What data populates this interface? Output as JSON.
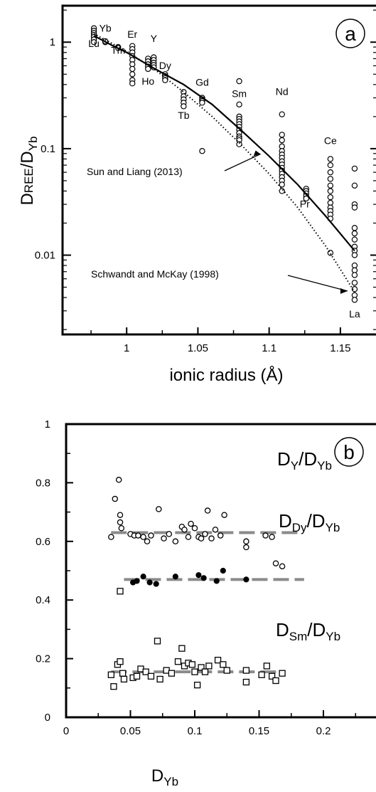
{
  "chart_data": [
    {
      "panel": "a",
      "type": "scatter",
      "xlabel": "ionic radius (Å)",
      "ylabel_main": "D",
      "ylabel_sub1": "REE",
      "ylabel_sep": "/D",
      "ylabel_sub2": "Yb",
      "yscale": "log",
      "xlim": [
        0.955,
        1.175
      ],
      "ylim": [
        0.0018,
        2.2
      ],
      "xticks": [
        1,
        1.05,
        1.1,
        1.15
      ],
      "xtick_labels": [
        "1",
        "1.05",
        "1.1",
        "1.15"
      ],
      "yticks": [
        1,
        0.1,
        0.01
      ],
      "ytick_labels": [
        "1",
        "0.1",
        "0.01"
      ],
      "element_labels": [
        {
          "text": "Lu",
          "x": 0.977,
          "y": 0.9
        },
        {
          "text": "Yb",
          "x": 0.985,
          "y": 1.25
        },
        {
          "text": "Tm",
          "x": 0.994,
          "y": 0.78
        },
        {
          "text": "Er",
          "x": 1.004,
          "y": 1.1
        },
        {
          "text": "Y",
          "x": 1.019,
          "y": 1.0
        },
        {
          "text": "Ho",
          "x": 1.015,
          "y": 0.4
        },
        {
          "text": "Dy",
          "x": 1.027,
          "y": 0.56
        },
        {
          "text": "Gd",
          "x": 1.053,
          "y": 0.39
        },
        {
          "text": "Tb",
          "x": 1.04,
          "y": 0.19
        },
        {
          "text": "Sm",
          "x": 1.079,
          "y": 0.305
        },
        {
          "text": "Nd",
          "x": 1.109,
          "y": 0.32
        },
        {
          "text": "Pr",
          "x": 1.125,
          "y": 0.028
        },
        {
          "text": "Ce",
          "x": 1.143,
          "y": 0.11
        },
        {
          "text": "La",
          "x": 1.16,
          "y": 0.0026
        }
      ],
      "series": [
        {
          "marker": "open-circle",
          "points": [
            [
              0.977,
              1.35
            ],
            [
              0.977,
              1.28
            ],
            [
              0.977,
              1.22
            ],
            [
              0.977,
              1.17
            ],
            [
              0.977,
              1.12
            ],
            [
              0.977,
              1.06
            ],
            [
              0.977,
              1.0
            ],
            [
              0.985,
              1.0
            ],
            [
              0.985,
              1.02
            ],
            [
              0.994,
              0.9
            ],
            [
              0.994,
              0.88
            ],
            [
              1.004,
              0.92
            ],
            [
              1.004,
              0.86
            ],
            [
              1.004,
              0.8
            ],
            [
              1.004,
              0.74
            ],
            [
              1.004,
              0.68
            ],
            [
              1.004,
              0.62
            ],
            [
              1.004,
              0.56
            ],
            [
              1.004,
              0.5
            ],
            [
              1.004,
              0.44
            ],
            [
              1.004,
              0.41
            ],
            [
              1.015,
              0.7
            ],
            [
              1.015,
              0.66
            ],
            [
              1.015,
              0.62
            ],
            [
              1.015,
              0.59
            ],
            [
              1.015,
              0.56
            ],
            [
              1.019,
              0.72
            ],
            [
              1.019,
              0.68
            ],
            [
              1.019,
              0.64
            ],
            [
              1.019,
              0.61
            ],
            [
              1.019,
              0.58
            ],
            [
              1.027,
              0.5
            ],
            [
              1.027,
              0.48
            ],
            [
              1.027,
              0.46
            ],
            [
              1.027,
              0.44
            ],
            [
              1.04,
              0.34
            ],
            [
              1.04,
              0.31
            ],
            [
              1.04,
              0.29
            ],
            [
              1.04,
              0.27
            ],
            [
              1.04,
              0.25
            ],
            [
              1.053,
              0.3
            ],
            [
              1.053,
              0.29
            ],
            [
              1.053,
              0.28
            ],
            [
              1.053,
              0.27
            ],
            [
              1.053,
              0.095
            ],
            [
              1.079,
              0.43
            ],
            [
              1.079,
              0.26
            ],
            [
              1.079,
              0.2
            ],
            [
              1.079,
              0.19
            ],
            [
              1.079,
              0.18
            ],
            [
              1.079,
              0.17
            ],
            [
              1.079,
              0.16
            ],
            [
              1.079,
              0.15
            ],
            [
              1.079,
              0.14
            ],
            [
              1.079,
              0.13
            ],
            [
              1.079,
              0.125
            ],
            [
              1.079,
              0.12
            ],
            [
              1.079,
              0.11
            ],
            [
              1.109,
              0.21
            ],
            [
              1.109,
              0.135
            ],
            [
              1.109,
              0.12
            ],
            [
              1.109,
              0.105
            ],
            [
              1.109,
              0.095
            ],
            [
              1.109,
              0.088
            ],
            [
              1.109,
              0.082
            ],
            [
              1.109,
              0.076
            ],
            [
              1.109,
              0.071
            ],
            [
              1.109,
              0.066
            ],
            [
              1.109,
              0.062
            ],
            [
              1.109,
              0.058
            ],
            [
              1.109,
              0.054
            ],
            [
              1.109,
              0.05
            ],
            [
              1.109,
              0.046
            ],
            [
              1.109,
              0.04
            ],
            [
              1.126,
              0.042
            ],
            [
              1.126,
              0.04
            ],
            [
              1.126,
              0.038
            ],
            [
              1.126,
              0.036
            ],
            [
              1.126,
              0.034
            ],
            [
              1.143,
              0.08
            ],
            [
              1.143,
              0.07
            ],
            [
              1.143,
              0.06
            ],
            [
              1.143,
              0.052
            ],
            [
              1.143,
              0.045
            ],
            [
              1.143,
              0.04
            ],
            [
              1.143,
              0.035
            ],
            [
              1.143,
              0.031
            ],
            [
              1.143,
              0.028
            ],
            [
              1.143,
              0.026
            ],
            [
              1.143,
              0.024
            ],
            [
              1.143,
              0.022
            ],
            [
              1.143,
              0.0105
            ],
            [
              1.16,
              0.065
            ],
            [
              1.16,
              0.045
            ],
            [
              1.16,
              0.03
            ],
            [
              1.16,
              0.028
            ],
            [
              1.16,
              0.018
            ],
            [
              1.16,
              0.016
            ],
            [
              1.16,
              0.014
            ],
            [
              1.16,
              0.012
            ],
            [
              1.16,
              0.011
            ],
            [
              1.16,
              0.01
            ],
            [
              1.16,
              0.008
            ],
            [
              1.16,
              0.0072
            ],
            [
              1.16,
              0.0065
            ],
            [
              1.16,
              0.0055
            ],
            [
              1.16,
              0.0048
            ],
            [
              1.16,
              0.0042
            ],
            [
              1.16,
              0.0038
            ]
          ]
        },
        {
          "name": "Sun and Liang (2013)",
          "marker": "solid-line",
          "points": [
            [
              0.977,
              1.15
            ],
            [
              0.99,
              0.93
            ],
            [
              1.0,
              0.8
            ],
            [
              1.02,
              0.56
            ],
            [
              1.04,
              0.4
            ],
            [
              1.06,
              0.26
            ],
            [
              1.08,
              0.15
            ],
            [
              1.1,
              0.085
            ],
            [
              1.12,
              0.046
            ],
            [
              1.14,
              0.023
            ],
            [
              1.16,
              0.011
            ]
          ]
        },
        {
          "name": "Schwandt and McKay (1998)",
          "marker": "dotted-line",
          "points": [
            [
              0.977,
              1.2
            ],
            [
              1.0,
              0.82
            ],
            [
              1.02,
              0.55
            ],
            [
              1.04,
              0.34
            ],
            [
              1.06,
              0.2
            ],
            [
              1.08,
              0.11
            ],
            [
              1.1,
              0.058
            ],
            [
              1.12,
              0.028
            ],
            [
              1.14,
              0.012
            ],
            [
              1.16,
              0.0045
            ]
          ]
        }
      ],
      "annotations": [
        {
          "text": "Sun and Liang (2013)",
          "arrow_to": [
            1.094,
            0.089
          ]
        },
        {
          "text": "Schwandt and McKay (1998)",
          "arrow_to": [
            1.156,
            0.0046
          ]
        }
      ],
      "panel_label": "a"
    },
    {
      "panel": "b",
      "type": "scatter",
      "xlabel_main": "D",
      "xlabel_sub": "Yb",
      "xlim": [
        0,
        0.25
      ],
      "ylim": [
        0,
        1
      ],
      "xticks": [
        0,
        0.05,
        0.1,
        0.15,
        0.2
      ],
      "xtick_labels": [
        "0",
        "0.05",
        "0.1",
        "0.15",
        "0.2"
      ],
      "yticks": [
        0,
        0.2,
        0.4,
        0.6,
        0.8,
        1
      ],
      "ytick_labels": [
        "0",
        "0.2",
        "0.4",
        "0.6",
        "0.8",
        "1"
      ],
      "series": [
        {
          "label_main": "D",
          "label_sub1": "Y",
          "label_sep": "/D",
          "label_sub2": "Yb",
          "marker": "open-circle",
          "mean": 0.63,
          "mean_range": [
            0.035,
            0.18
          ],
          "points": [
            [
              0.035,
              0.615
            ],
            [
              0.038,
              0.745
            ],
            [
              0.041,
              0.81
            ],
            [
              0.042,
              0.69
            ],
            [
              0.042,
              0.665
            ],
            [
              0.043,
              0.645
            ],
            [
              0.05,
              0.625
            ],
            [
              0.053,
              0.62
            ],
            [
              0.056,
              0.62
            ],
            [
              0.06,
              0.615
            ],
            [
              0.063,
              0.6
            ],
            [
              0.066,
              0.62
            ],
            [
              0.072,
              0.71
            ],
            [
              0.076,
              0.61
            ],
            [
              0.08,
              0.625
            ],
            [
              0.085,
              0.6
            ],
            [
              0.09,
              0.65
            ],
            [
              0.092,
              0.64
            ],
            [
              0.095,
              0.615
            ],
            [
              0.097,
              0.66
            ],
            [
              0.1,
              0.645
            ],
            [
              0.103,
              0.615
            ],
            [
              0.105,
              0.61
            ],
            [
              0.108,
              0.625
            ],
            [
              0.11,
              0.705
            ],
            [
              0.113,
              0.61
            ],
            [
              0.116,
              0.64
            ],
            [
              0.12,
              0.62
            ],
            [
              0.123,
              0.69
            ],
            [
              0.14,
              0.6
            ],
            [
              0.14,
              0.58
            ],
            [
              0.155,
              0.62
            ],
            [
              0.16,
              0.615
            ],
            [
              0.163,
              0.525
            ],
            [
              0.168,
              0.515
            ]
          ]
        },
        {
          "label_main": "D",
          "label_sub1": "Dy",
          "label_sep": "/D",
          "label_sub2": "Yb",
          "marker": "filled-circle",
          "mean": 0.47,
          "mean_range": [
            0.045,
            0.185
          ],
          "points": [
            [
              0.052,
              0.46
            ],
            [
              0.055,
              0.465
            ],
            [
              0.06,
              0.48
            ],
            [
              0.065,
              0.46
            ],
            [
              0.07,
              0.455
            ],
            [
              0.085,
              0.48
            ],
            [
              0.103,
              0.485
            ],
            [
              0.107,
              0.475
            ],
            [
              0.117,
              0.465
            ],
            [
              0.122,
              0.5
            ],
            [
              0.14,
              0.47
            ]
          ]
        },
        {
          "label_main": "D",
          "label_sub1": "Sm",
          "label_sep": "/D",
          "label_sub2": "Yb",
          "marker": "open-square",
          "mean": 0.155,
          "mean_range": [
            0.035,
            0.17
          ],
          "points": [
            [
              0.035,
              0.145
            ],
            [
              0.037,
              0.105
            ],
            [
              0.04,
              0.18
            ],
            [
              0.042,
              0.19
            ],
            [
              0.044,
              0.15
            ],
            [
              0.045,
              0.13
            ],
            [
              0.042,
              0.43
            ],
            [
              0.052,
              0.135
            ],
            [
              0.055,
              0.14
            ],
            [
              0.058,
              0.165
            ],
            [
              0.062,
              0.155
            ],
            [
              0.066,
              0.14
            ],
            [
              0.071,
              0.26
            ],
            [
              0.073,
              0.13
            ],
            [
              0.078,
              0.16
            ],
            [
              0.082,
              0.15
            ],
            [
              0.087,
              0.19
            ],
            [
              0.09,
              0.235
            ],
            [
              0.092,
              0.175
            ],
            [
              0.095,
              0.185
            ],
            [
              0.098,
              0.18
            ],
            [
              0.1,
              0.155
            ],
            [
              0.102,
              0.11
            ],
            [
              0.105,
              0.17
            ],
            [
              0.108,
              0.155
            ],
            [
              0.111,
              0.175
            ],
            [
              0.118,
              0.195
            ],
            [
              0.122,
              0.18
            ],
            [
              0.125,
              0.16
            ],
            [
              0.14,
              0.16
            ],
            [
              0.14,
              0.12
            ],
            [
              0.152,
              0.145
            ],
            [
              0.156,
              0.175
            ],
            [
              0.16,
              0.14
            ],
            [
              0.163,
              0.125
            ],
            [
              0.168,
              0.15
            ]
          ]
        }
      ],
      "panel_label": "b"
    }
  ]
}
